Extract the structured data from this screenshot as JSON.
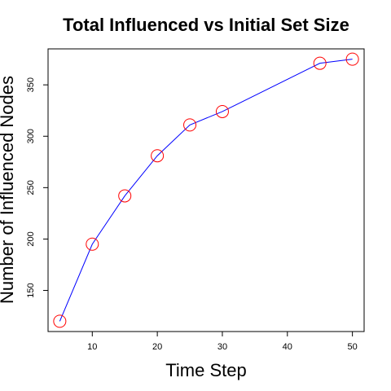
{
  "chart_data": {
    "type": "line",
    "title": "Total Influenced vs Initial Set Size",
    "xlabel": "Time Step",
    "ylabel": "Number of Influenced Nodes",
    "x": [
      5,
      10,
      15,
      20,
      25,
      30,
      45,
      50
    ],
    "series": [
      {
        "values": [
          120,
          195,
          242,
          281,
          311,
          324,
          371,
          375
        ]
      }
    ],
    "xlim": [
      3.2,
      51.8
    ],
    "ylim": [
      110,
      385
    ],
    "xticks": [
      10,
      20,
      30,
      40,
      50
    ],
    "yticks": [
      150,
      200,
      250,
      300,
      350
    ],
    "line_color": "#0000ff",
    "marker_color": "#ff0000",
    "grid": false
  }
}
